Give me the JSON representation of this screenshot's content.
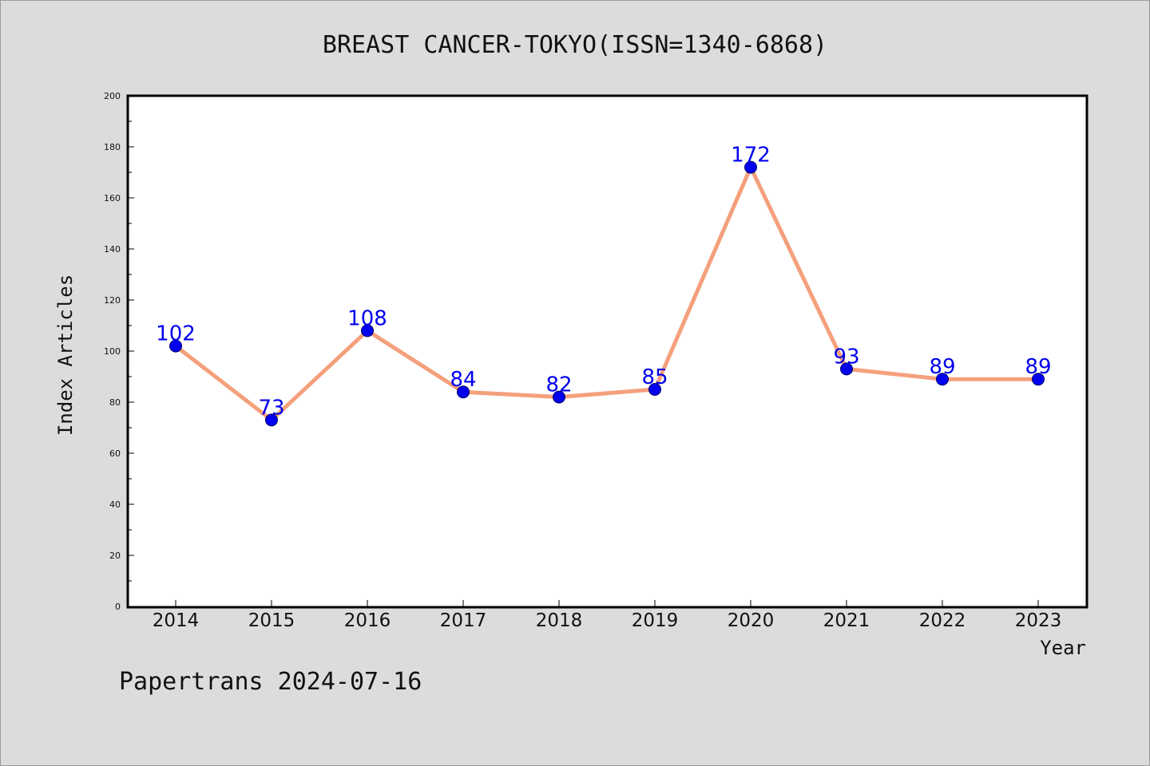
{
  "chart_data": {
    "type": "line",
    "title": "BREAST CANCER-TOKYO(ISSN=1340-6868)",
    "xlabel": "Year",
    "ylabel": "Index Articles",
    "categories": [
      "2014",
      "2015",
      "2016",
      "2017",
      "2018",
      "2019",
      "2020",
      "2021",
      "2022",
      "2023"
    ],
    "values": [
      102,
      73,
      108,
      84,
      82,
      85,
      172,
      93,
      89,
      89
    ],
    "data_labels": [
      "102",
      "73",
      "108",
      "84",
      "82",
      "85",
      "172",
      "93",
      "89",
      "89"
    ],
    "ylim": [
      0,
      200
    ],
    "yticks": [
      0,
      20,
      40,
      60,
      80,
      100,
      120,
      140,
      160,
      180,
      200
    ],
    "ytick_labels": [
      "0",
      "20",
      "40",
      "60",
      "80",
      "100",
      "120",
      "140",
      "160",
      "180",
      "200"
    ],
    "grid": false,
    "colors": {
      "line": "#f4a07c",
      "marker": "#0000ee",
      "data_label": "#0000ee",
      "background": "#dcdcdc",
      "plot_background": "#ffffff"
    }
  },
  "footer": {
    "source_text": "Papertrans 2024-07-16"
  }
}
